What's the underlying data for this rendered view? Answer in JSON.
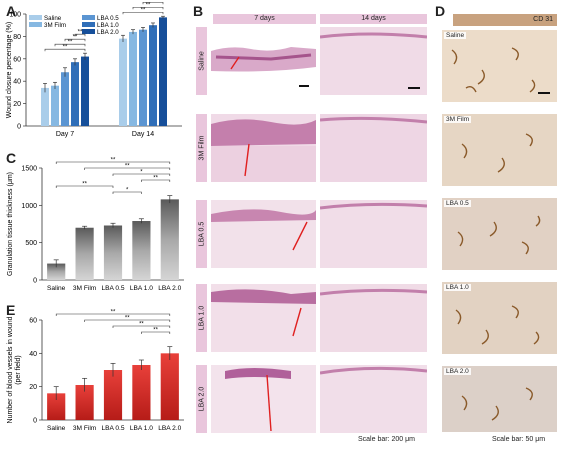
{
  "panel_letters": {
    "a": "A",
    "b": "B",
    "c": "C",
    "d": "D",
    "e": "E"
  },
  "chart_data": [
    {
      "panel": "A",
      "type": "bar",
      "categories": [
        "Day 7",
        "Day 14"
      ],
      "ylabel": "Wound closure percentage (%)",
      "ylim": [
        0,
        100
      ],
      "yticks": [
        0,
        20,
        40,
        60,
        80,
        100
      ],
      "legend": [
        "Saline",
        "3M Film",
        "LBA 0.5",
        "LBA 1.0",
        "LBA 2.0"
      ],
      "colors": [
        "#a9cdea",
        "#86b8e2",
        "#5b95d2",
        "#2f6eb8",
        "#164f9a"
      ],
      "series": [
        {
          "name": "Saline",
          "values": [
            34,
            78
          ],
          "errors": [
            4,
            3
          ]
        },
        {
          "name": "3M Film",
          "values": [
            36,
            84
          ],
          "errors": [
            3,
            2
          ]
        },
        {
          "name": "LBA 0.5",
          "values": [
            48,
            86
          ],
          "errors": [
            4,
            2
          ]
        },
        {
          "name": "LBA 1.0",
          "values": [
            57,
            90
          ],
          "errors": [
            3,
            2
          ]
        },
        {
          "name": "LBA 2.0",
          "values": [
            62,
            97
          ],
          "errors": [
            3,
            1
          ]
        }
      ],
      "significance": "**"
    },
    {
      "panel": "C",
      "type": "bar",
      "categories": [
        "Saline",
        "3M Film",
        "LBA 0.5",
        "LBA 1.0",
        "LBA 2.0"
      ],
      "ylabel": "Granulation tissue thickness (μm)",
      "ylim": [
        0,
        1500
      ],
      "yticks": [
        0,
        500,
        1000,
        1500
      ],
      "values": [
        220,
        700,
        730,
        790,
        1080
      ],
      "errors": [
        50,
        20,
        30,
        30,
        50
      ],
      "color": "#8a8a8a",
      "significance": [
        "**",
        "**",
        "*",
        "**",
        "**",
        "*"
      ]
    },
    {
      "panel": "E",
      "type": "bar",
      "categories": [
        "Saline",
        "3M Film",
        "LBA 0.5",
        "LBA 1.0",
        "LBA 2.0"
      ],
      "ylabel": "Number of blood vessels in wound",
      "ylabel2": "(per field)",
      "ylim": [
        0,
        60
      ],
      "yticks": [
        0,
        20,
        40,
        60
      ],
      "values": [
        16,
        21,
        30,
        33,
        40
      ],
      "errors": [
        4,
        4,
        4,
        3,
        4
      ],
      "color": "#d9302a",
      "significance": [
        "**",
        "**",
        "**",
        "**"
      ]
    }
  ],
  "panel_b": {
    "col_headers": [
      "7 days",
      "14 days"
    ],
    "row_labels": [
      "Saline",
      "3M Film",
      "LBA 0.5",
      "LBA 1.0",
      "LBA 2.0"
    ],
    "scale_text": "Scale bar: 200 μm"
  },
  "panel_d": {
    "header": "CD 31",
    "row_labels": [
      "Saline",
      "3M Film",
      "LBA 0.5",
      "LBA 1.0",
      "LBA 2.0"
    ],
    "scale_text": "Scale bar: 50 μm"
  }
}
